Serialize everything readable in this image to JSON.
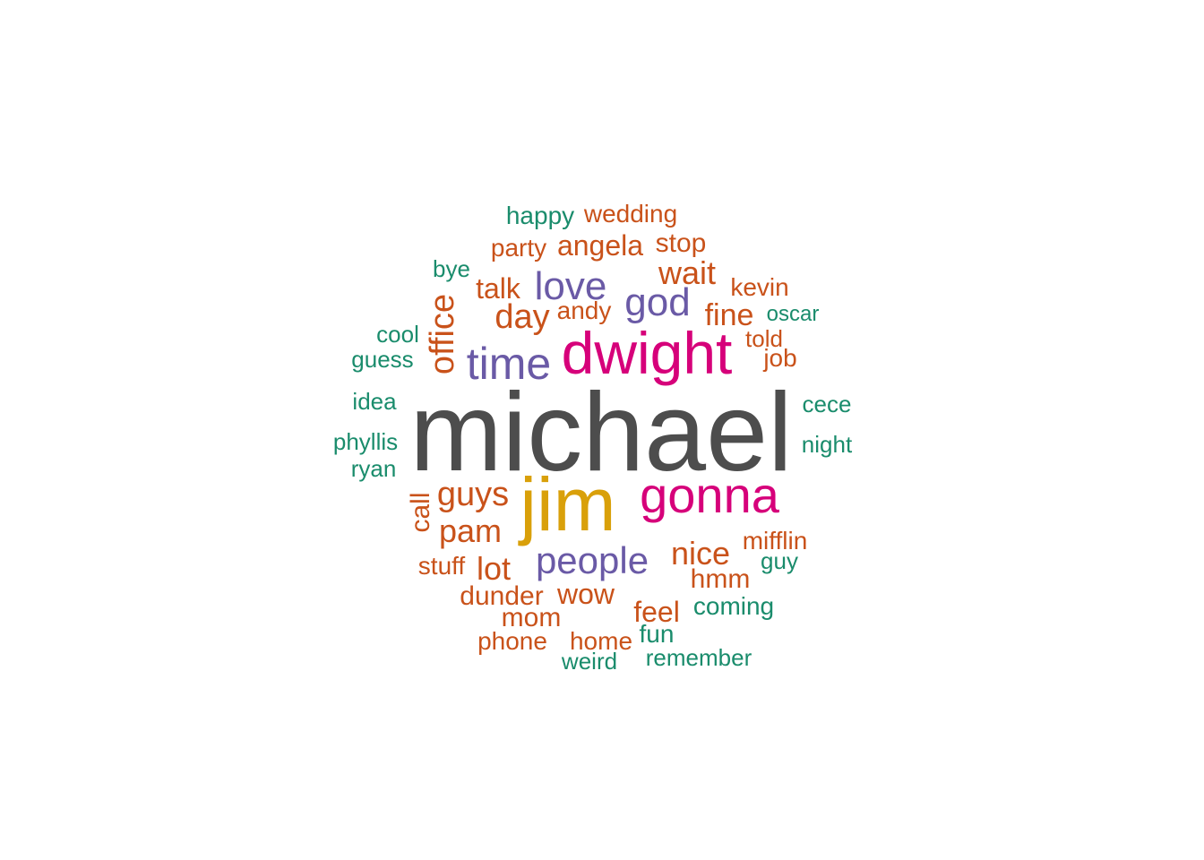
{
  "colors": {
    "dark_gray": "#4d4d4d",
    "gold": "#d9a00a",
    "magenta": "#d6007a",
    "purple": "#6a5aa6",
    "orange": "#c9521a",
    "teal": "#1a8c6c"
  },
  "words": [
    {
      "text": "michael",
      "color": "dark_gray"
    },
    {
      "text": "jim",
      "color": "gold"
    },
    {
      "text": "dwight",
      "color": "magenta"
    },
    {
      "text": "gonna",
      "color": "magenta"
    },
    {
      "text": "time",
      "color": "purple"
    },
    {
      "text": "people",
      "color": "purple"
    },
    {
      "text": "love",
      "color": "purple"
    },
    {
      "text": "god",
      "color": "purple"
    },
    {
      "text": "guys",
      "color": "orange"
    },
    {
      "text": "pam",
      "color": "orange"
    },
    {
      "text": "nice",
      "color": "orange"
    },
    {
      "text": "office",
      "color": "orange"
    },
    {
      "text": "day",
      "color": "orange"
    },
    {
      "text": "wait",
      "color": "orange"
    },
    {
      "text": "lot",
      "color": "orange"
    },
    {
      "text": "fine",
      "color": "orange"
    },
    {
      "text": "angela",
      "color": "orange"
    },
    {
      "text": "talk",
      "color": "orange"
    },
    {
      "text": "wow",
      "color": "orange"
    },
    {
      "text": "feel",
      "color": "orange"
    },
    {
      "text": "call",
      "color": "orange"
    },
    {
      "text": "hmm",
      "color": "orange"
    },
    {
      "text": "dunder",
      "color": "orange"
    },
    {
      "text": "mifflin",
      "color": "orange"
    },
    {
      "text": "stop",
      "color": "orange"
    },
    {
      "text": "mom",
      "color": "orange"
    },
    {
      "text": "wedding",
      "color": "orange"
    },
    {
      "text": "party",
      "color": "orange"
    },
    {
      "text": "stuff",
      "color": "orange"
    },
    {
      "text": "home",
      "color": "orange"
    },
    {
      "text": "phone",
      "color": "orange"
    },
    {
      "text": "kevin",
      "color": "orange"
    },
    {
      "text": "andy",
      "color": "orange"
    },
    {
      "text": "job",
      "color": "orange"
    },
    {
      "text": "told",
      "color": "orange"
    },
    {
      "text": "happy",
      "color": "teal"
    },
    {
      "text": "bye",
      "color": "teal"
    },
    {
      "text": "cool",
      "color": "teal"
    },
    {
      "text": "guess",
      "color": "teal"
    },
    {
      "text": "idea",
      "color": "teal"
    },
    {
      "text": "phyllis",
      "color": "teal"
    },
    {
      "text": "ryan",
      "color": "teal"
    },
    {
      "text": "cece",
      "color": "teal"
    },
    {
      "text": "night",
      "color": "teal"
    },
    {
      "text": "oscar",
      "color": "teal"
    },
    {
      "text": "guy",
      "color": "teal"
    },
    {
      "text": "coming",
      "color": "teal"
    },
    {
      "text": "fun",
      "color": "teal"
    },
    {
      "text": "remember",
      "color": "teal"
    },
    {
      "text": "weird",
      "color": "teal"
    }
  ]
}
